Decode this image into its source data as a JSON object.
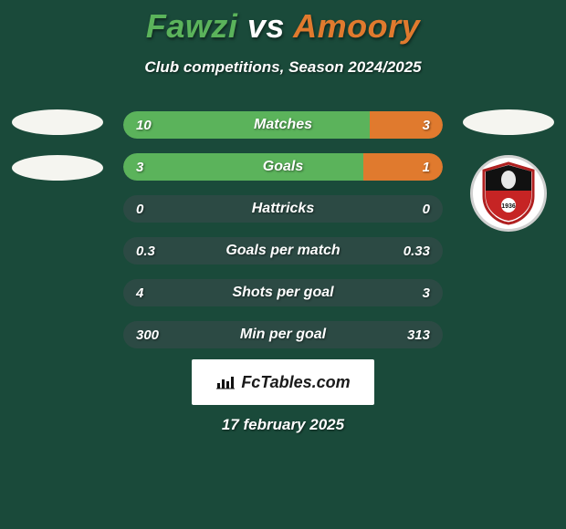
{
  "background_color": "#1a4a3a",
  "title": {
    "left": "Fawzi",
    "vs": "vs",
    "right": "Amoory",
    "left_color": "#5bb35b",
    "vs_color": "#ffffff",
    "right_color": "#e07a2e"
  },
  "subtitle": "Club competitions, Season 2024/2025",
  "colors": {
    "left_bar": "#5bb35b",
    "right_bar": "#e07a2e",
    "row_bg": "#2c4a44",
    "text": "#ffffff"
  },
  "stats": [
    {
      "label": "Matches",
      "left_val": "10",
      "right_val": "3",
      "left_pct": 77,
      "right_pct": 23
    },
    {
      "label": "Goals",
      "left_val": "3",
      "right_val": "1",
      "left_pct": 75,
      "right_pct": 25
    },
    {
      "label": "Hattricks",
      "left_val": "0",
      "right_val": "0",
      "left_pct": 0,
      "right_pct": 0
    },
    {
      "label": "Goals per match",
      "left_val": "0.3",
      "right_val": "0.33",
      "left_pct": 0,
      "right_pct": 0
    },
    {
      "label": "Shots per goal",
      "left_val": "4",
      "right_val": "3",
      "left_pct": 0,
      "right_pct": 0
    },
    {
      "label": "Min per goal",
      "left_val": "300",
      "right_val": "313",
      "left_pct": 0,
      "right_pct": 0
    }
  ],
  "brand": "FcTables.com",
  "date": "17 february 2025",
  "club_year": "1936"
}
